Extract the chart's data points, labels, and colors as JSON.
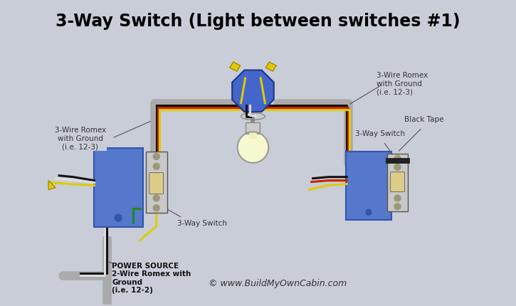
{
  "title": "3-Way Switch (Light between switches #1)",
  "bg_color": "#c8cdd8",
  "border_color": "#999999",
  "wire_colors": {
    "black": "#111111",
    "white": "#dddddd",
    "red": "#cc2200",
    "yellow": "#ddcc00",
    "green": "#228822",
    "gray": "#aaaaaa",
    "gray_dark": "#888888"
  },
  "labels": {
    "title": "3-Way Switch (Light between switches #1)",
    "left_romex": "3-Wire Romex\nwith Ground\n(i.e. 12-3)",
    "right_romex": "3-Wire Romex\nwith Ground\n(i.e. 12-3)",
    "switch1": "3-Way Switch",
    "switch2": "3-Way Switch",
    "black_tape": "Black Tape",
    "power": "POWER SOURCE\n2-Wire Romex with\nGround\n(i.e. 12-2)",
    "copyright": "© www.BuildMyOwnCabin.com"
  },
  "font_sizes": {
    "title": 17,
    "labels": 7.5,
    "power_label": 7.5,
    "copyright": 9
  }
}
